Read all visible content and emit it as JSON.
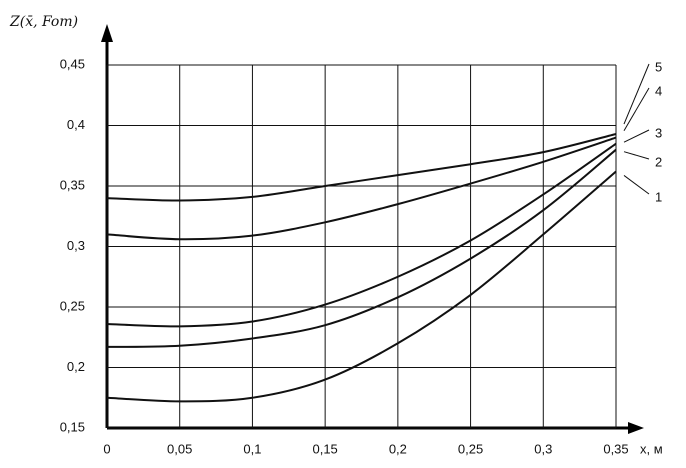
{
  "chart_data": {
    "type": "line",
    "ylabel": "Z(x̄, Fom)",
    "xlabel": "x, м",
    "x": [
      0,
      0.05,
      0.1,
      0.15,
      0.2,
      0.25,
      0.3,
      0.35
    ],
    "xlim": [
      0,
      0.35
    ],
    "xticks": [
      0,
      {
        "value": 0.05,
        "label": "0,05"
      },
      {
        "value": 0.1,
        "label": "0,1"
      },
      {
        "value": 0.15,
        "label": "0,15"
      },
      {
        "value": 0.2,
        "label": "0,2"
      },
      {
        "value": 0.25,
        "label": "0,25"
      },
      {
        "value": 0.3,
        "label": "0,3"
      },
      {
        "value": 0.35,
        "label": "0,35"
      }
    ],
    "ylim": [
      0.15,
      0.45
    ],
    "yticks": [
      {
        "value": 0.15,
        "label": "0,15"
      },
      {
        "value": 0.2,
        "label": "0,2"
      },
      {
        "value": 0.25,
        "label": "0,25"
      },
      {
        "value": 0.3,
        "label": "0,3"
      },
      {
        "value": 0.35,
        "label": "0,35"
      },
      {
        "value": 0.4,
        "label": "0,4"
      },
      {
        "value": 0.45,
        "label": "0,45"
      }
    ],
    "grid": true,
    "series": [
      {
        "name": "1",
        "color": "#111111",
        "values": [
          0.175,
          0.172,
          0.175,
          0.19,
          0.22,
          0.26,
          0.31,
          0.362
        ]
      },
      {
        "name": "2",
        "color": "#111111",
        "values": [
          0.217,
          0.218,
          0.224,
          0.235,
          0.258,
          0.29,
          0.33,
          0.38
        ]
      },
      {
        "name": "3",
        "color": "#111111",
        "values": [
          0.236,
          0.234,
          0.238,
          0.252,
          0.275,
          0.305,
          0.343,
          0.385
        ]
      },
      {
        "name": "4",
        "color": "#111111",
        "values": [
          0.31,
          0.306,
          0.309,
          0.32,
          0.335,
          0.352,
          0.37,
          0.39
        ]
      },
      {
        "name": "5",
        "color": "#111111",
        "values": [
          0.34,
          0.338,
          0.341,
          0.35,
          0.359,
          0.368,
          0.378,
          0.393
        ]
      }
    ]
  }
}
